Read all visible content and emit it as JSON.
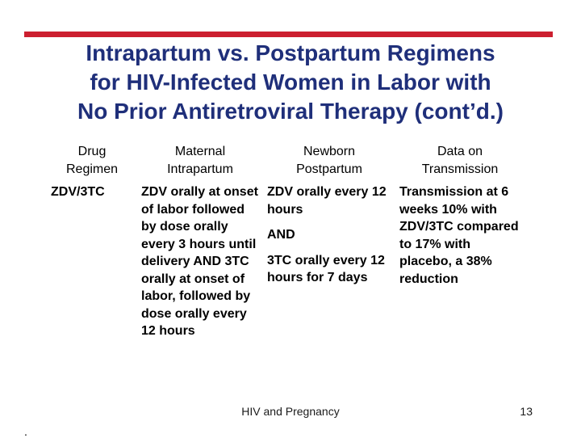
{
  "title": {
    "line1": "Intrapartum vs. Postpartum Regimens",
    "line2": "for HIV-Infected Women in Labor with",
    "line3": "No Prior Antiretroviral Therapy (cont’d.)"
  },
  "table": {
    "headers": [
      {
        "line1": "Drug",
        "line2": "Regimen"
      },
      {
        "line1": "Maternal",
        "line2": "Intrapartum"
      },
      {
        "line1": "Newborn",
        "line2": "Postpartum"
      },
      {
        "line1": "Data on",
        "line2": "Transmission"
      }
    ],
    "row": {
      "drug": "ZDV/3TC",
      "maternal": "ZDV orally at onset of labor followed by dose orally every 3 hours until delivery AND 3TC orally at onset of labor, followed by dose orally every 12 hours",
      "newborn": {
        "p1": "ZDV orally every 12 hours",
        "p2": "AND",
        "p3": "3TC orally every 12 hours for 7 days"
      },
      "transmission": "Transmission at 6 weeks 10% with ZDV/3TC compared to 17% with placebo, a 38% reduction"
    }
  },
  "footer": {
    "text": "HIV and Pregnancy",
    "page": "13",
    "mark": "."
  },
  "colors": {
    "accent": "#cc1f2f",
    "title": "#1f2f7a"
  }
}
